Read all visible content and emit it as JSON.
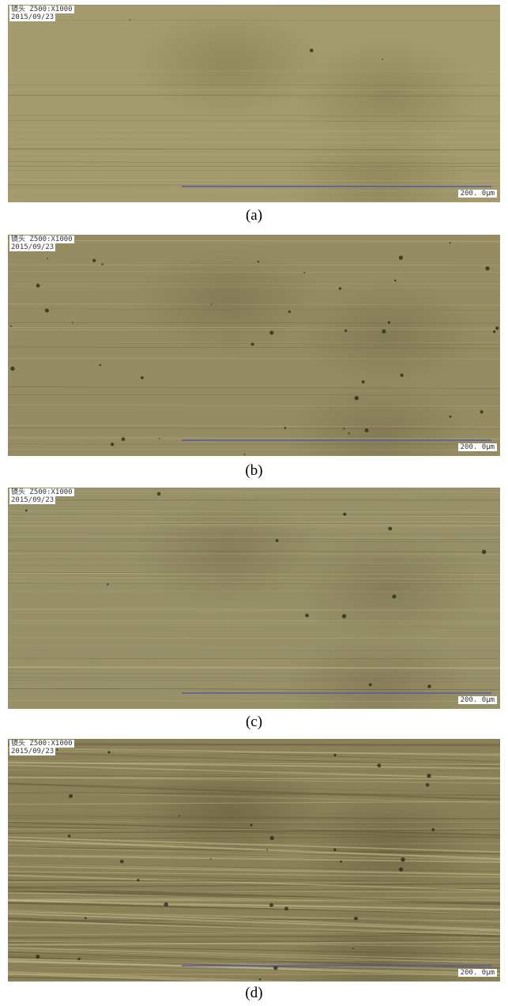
{
  "panels": [
    {
      "lens": "镜头 Z500:X1000",
      "date": "2015/09/23",
      "scale": "200. 0μm",
      "caption": "(a)"
    },
    {
      "lens": "镜头 Z500:X1000",
      "date": "2015/09/23",
      "scale": "200. 0μm",
      "caption": "(b)"
    },
    {
      "lens": "镜头 Z500:X1000",
      "date": "2015/09/23",
      "scale": "200. 0μm",
      "caption": "(c)"
    },
    {
      "lens": "镜头 Z500:X1000",
      "date": "2015/09/23",
      "scale": "200. 0μm",
      "caption": "(d)"
    }
  ]
}
